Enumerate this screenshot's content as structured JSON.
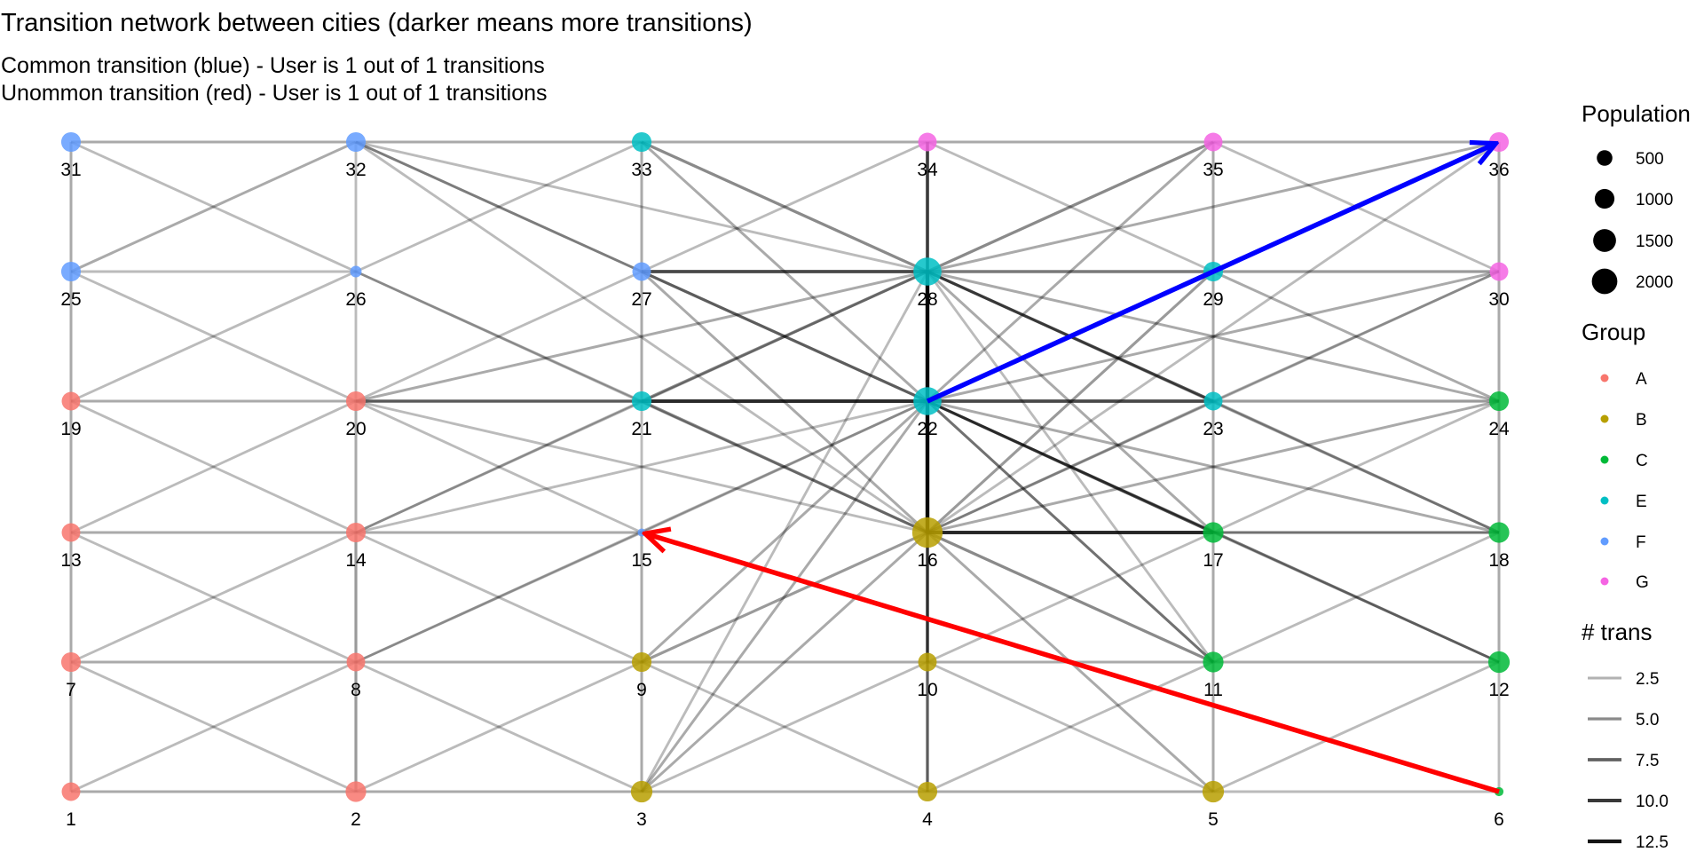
{
  "header": {
    "title": "Transition network between cities (darker means more transitions)",
    "subtitle_1": "Common transition (blue) - User is 1 out of 1 transitions",
    "subtitle_2": "Unommon transition (red) - User is 1 out of 1 transitions"
  },
  "colors": {
    "A": "#f8766d",
    "B": "#b79f00",
    "C": "#00ba38",
    "E": "#00bfc4",
    "F": "#619cff",
    "G": "#f564e3",
    "common_arrow": "#0000ff",
    "uncommon_arrow": "#ff0000",
    "edge": "#000000"
  },
  "nodes": [
    {
      "id": "1",
      "group": "A",
      "pop": 300
    },
    {
      "id": "2",
      "group": "A",
      "pop": 400
    },
    {
      "id": "3",
      "group": "B",
      "pop": 450
    },
    {
      "id": "4",
      "group": "B",
      "pop": 350
    },
    {
      "id": "5",
      "group": "B",
      "pop": 450
    },
    {
      "id": "6",
      "group": "C",
      "pop": 20
    },
    {
      "id": "7",
      "group": "A",
      "pop": 350
    },
    {
      "id": "8",
      "group": "A",
      "pop": 300
    },
    {
      "id": "9",
      "group": "B",
      "pop": 350
    },
    {
      "id": "10",
      "group": "B",
      "pop": 300
    },
    {
      "id": "11",
      "group": "C",
      "pop": 400
    },
    {
      "id": "12",
      "group": "C",
      "pop": 450
    },
    {
      "id": "13",
      "group": "A",
      "pop": 300
    },
    {
      "id": "14",
      "group": "A",
      "pop": 350
    },
    {
      "id": "15",
      "group": "F",
      "pop": 10
    },
    {
      "id": "16",
      "group": "B",
      "pop": 1100
    },
    {
      "id": "17",
      "group": "C",
      "pop": 400
    },
    {
      "id": "18",
      "group": "C",
      "pop": 400
    },
    {
      "id": "19",
      "group": "A",
      "pop": 300
    },
    {
      "id": "20",
      "group": "A",
      "pop": 350
    },
    {
      "id": "21",
      "group": "E",
      "pop": 350
    },
    {
      "id": "22",
      "group": "E",
      "pop": 900
    },
    {
      "id": "23",
      "group": "E",
      "pop": 300
    },
    {
      "id": "24",
      "group": "C",
      "pop": 350
    },
    {
      "id": "25",
      "group": "F",
      "pop": 350
    },
    {
      "id": "26",
      "group": "F",
      "pop": 60
    },
    {
      "id": "27",
      "group": "F",
      "pop": 300
    },
    {
      "id": "28",
      "group": "E",
      "pop": 900
    },
    {
      "id": "29",
      "group": "E",
      "pop": 350
    },
    {
      "id": "30",
      "group": "G",
      "pop": 300
    },
    {
      "id": "31",
      "group": "F",
      "pop": 350
    },
    {
      "id": "32",
      "group": "F",
      "pop": 350
    },
    {
      "id": "33",
      "group": "E",
      "pop": 350
    },
    {
      "id": "34",
      "group": "G",
      "pop": 300
    },
    {
      "id": "35",
      "group": "G",
      "pop": 300
    },
    {
      "id": "36",
      "group": "G",
      "pop": 350
    }
  ],
  "edges": [
    [
      "1",
      "2",
      3
    ],
    [
      "2",
      "3",
      3
    ],
    [
      "3",
      "4",
      3
    ],
    [
      "4",
      "5",
      3
    ],
    [
      "5",
      "6",
      2
    ],
    [
      "7",
      "8",
      3
    ],
    [
      "8",
      "9",
      3
    ],
    [
      "9",
      "10",
      3
    ],
    [
      "10",
      "11",
      3
    ],
    [
      "11",
      "12",
      3
    ],
    [
      "13",
      "14",
      3
    ],
    [
      "14",
      "15",
      3
    ],
    [
      "16",
      "17",
      10
    ],
    [
      "17",
      "18",
      3
    ],
    [
      "19",
      "20",
      3
    ],
    [
      "20",
      "21",
      6
    ],
    [
      "21",
      "22",
      10
    ],
    [
      "22",
      "23",
      9
    ],
    [
      "23",
      "24",
      4
    ],
    [
      "25",
      "26",
      2
    ],
    [
      "27",
      "28",
      9
    ],
    [
      "28",
      "29",
      6
    ],
    [
      "29",
      "30",
      4
    ],
    [
      "31",
      "32",
      3
    ],
    [
      "32",
      "33",
      3
    ],
    [
      "33",
      "34",
      3
    ],
    [
      "34",
      "35",
      3
    ],
    [
      "35",
      "36",
      3
    ],
    [
      "1",
      "7",
      3
    ],
    [
      "7",
      "13",
      3
    ],
    [
      "13",
      "19",
      3
    ],
    [
      "19",
      "25",
      3
    ],
    [
      "25",
      "31",
      3
    ],
    [
      "2",
      "8",
      4
    ],
    [
      "8",
      "14",
      4
    ],
    [
      "14",
      "20",
      3
    ],
    [
      "20",
      "26",
      2
    ],
    [
      "26",
      "32",
      2
    ],
    [
      "3",
      "9",
      3
    ],
    [
      "9",
      "15",
      3
    ],
    [
      "15",
      "21",
      2
    ],
    [
      "21",
      "27",
      3
    ],
    [
      "27",
      "33",
      3
    ],
    [
      "4",
      "10",
      5
    ],
    [
      "10",
      "16",
      7
    ],
    [
      "16",
      "22",
      13
    ],
    [
      "22",
      "28",
      13
    ],
    [
      "28",
      "34",
      8
    ],
    [
      "5",
      "11",
      3
    ],
    [
      "11",
      "17",
      3
    ],
    [
      "17",
      "23",
      3
    ],
    [
      "23",
      "29",
      3
    ],
    [
      "29",
      "35",
      3
    ],
    [
      "6",
      "12",
      2
    ],
    [
      "12",
      "18",
      3
    ],
    [
      "18",
      "24",
      3
    ],
    [
      "24",
      "30",
      3
    ],
    [
      "30",
      "36",
      3
    ],
    [
      "1",
      "8",
      2
    ],
    [
      "2",
      "7",
      2
    ],
    [
      "2",
      "9",
      2
    ],
    [
      "3",
      "8",
      2
    ],
    [
      "3",
      "10",
      2
    ],
    [
      "4",
      "9",
      2
    ],
    [
      "4",
      "11",
      2
    ],
    [
      "5",
      "10",
      2
    ],
    [
      "5",
      "12",
      2
    ],
    [
      "7",
      "14",
      2
    ],
    [
      "8",
      "13",
      2
    ],
    [
      "8",
      "15",
      2
    ],
    [
      "9",
      "16",
      4
    ],
    [
      "9",
      "14",
      2
    ],
    [
      "10",
      "17",
      2
    ],
    [
      "11",
      "16",
      5
    ],
    [
      "11",
      "18",
      2
    ],
    [
      "12",
      "17",
      2
    ],
    [
      "13",
      "20",
      2
    ],
    [
      "14",
      "19",
      2
    ],
    [
      "14",
      "21",
      2
    ],
    [
      "15",
      "20",
      2
    ],
    [
      "16",
      "23",
      3
    ],
    [
      "15",
      "22",
      2
    ],
    [
      "17",
      "22",
      5
    ],
    [
      "16",
      "21",
      5
    ],
    [
      "17",
      "24",
      2
    ],
    [
      "18",
      "23",
      3
    ],
    [
      "19",
      "26",
      2
    ],
    [
      "20",
      "25",
      2
    ],
    [
      "20",
      "27",
      2
    ],
    [
      "21",
      "26",
      2
    ],
    [
      "21",
      "28",
      5
    ],
    [
      "22",
      "27",
      5
    ],
    [
      "22",
      "29",
      4
    ],
    [
      "23",
      "28",
      5
    ],
    [
      "23",
      "30",
      2
    ],
    [
      "24",
      "29",
      3
    ],
    [
      "25",
      "32",
      3
    ],
    [
      "26",
      "31",
      2
    ],
    [
      "26",
      "33",
      2
    ],
    [
      "27",
      "32",
      2
    ],
    [
      "27",
      "34",
      2
    ],
    [
      "28",
      "33",
      5
    ],
    [
      "28",
      "35",
      5
    ],
    [
      "29",
      "34",
      2
    ],
    [
      "29",
      "36",
      2
    ],
    [
      "30",
      "35",
      2
    ],
    [
      "3",
      "16",
      3
    ],
    [
      "5",
      "16",
      3
    ],
    [
      "10",
      "22",
      3
    ],
    [
      "9",
      "22",
      3
    ],
    [
      "11",
      "22",
      3
    ],
    [
      "12",
      "22",
      2
    ],
    [
      "4",
      "16",
      3
    ],
    [
      "16",
      "28",
      5
    ],
    [
      "16",
      "29",
      4
    ],
    [
      "16",
      "30",
      2
    ],
    [
      "16",
      "27",
      3
    ],
    [
      "16",
      "20",
      2
    ],
    [
      "16",
      "24",
      3
    ],
    [
      "16",
      "18",
      3
    ],
    [
      "16",
      "26",
      2
    ],
    [
      "16",
      "32",
      2
    ],
    [
      "16",
      "36",
      2
    ],
    [
      "22",
      "34",
      3
    ],
    [
      "22",
      "33",
      3
    ],
    [
      "22",
      "35",
      3
    ],
    [
      "22",
      "36",
      2
    ],
    [
      "22",
      "30",
      3
    ],
    [
      "22",
      "18",
      3
    ],
    [
      "22",
      "12",
      3
    ],
    [
      "22",
      "11",
      3
    ],
    [
      "22",
      "17",
      4
    ],
    [
      "22",
      "32",
      3
    ],
    [
      "22",
      "20",
      2
    ],
    [
      "22",
      "14",
      2
    ],
    [
      "22",
      "8",
      2
    ],
    [
      "22",
      "3",
      3
    ],
    [
      "28",
      "36",
      3
    ],
    [
      "28",
      "24",
      3
    ],
    [
      "28",
      "18",
      3
    ],
    [
      "28",
      "20",
      3
    ],
    [
      "28",
      "14",
      2
    ],
    [
      "28",
      "32",
      2
    ],
    [
      "28",
      "3",
      2
    ],
    [
      "28",
      "11",
      2
    ],
    [
      "28",
      "17",
      3
    ],
    [
      "28",
      "23",
      4
    ]
  ],
  "arrows": {
    "common": {
      "from": "22",
      "to": "36"
    },
    "uncommon": {
      "from": "6",
      "to": "15"
    }
  },
  "legend": {
    "population": {
      "title": "Population",
      "items": [
        500,
        1000,
        1500,
        2000
      ],
      "labels": [
        "500",
        "1000",
        "1500",
        "2000"
      ]
    },
    "group": {
      "title": "Group",
      "items": [
        "A",
        "B",
        "C",
        "E",
        "F",
        "G"
      ]
    },
    "trans": {
      "title": "# trans",
      "items": [
        2.5,
        5.0,
        7.5,
        10.0,
        12.5
      ],
      "labels": [
        "2.5",
        "5.0",
        "7.5",
        "10.0",
        "12.5"
      ]
    }
  }
}
